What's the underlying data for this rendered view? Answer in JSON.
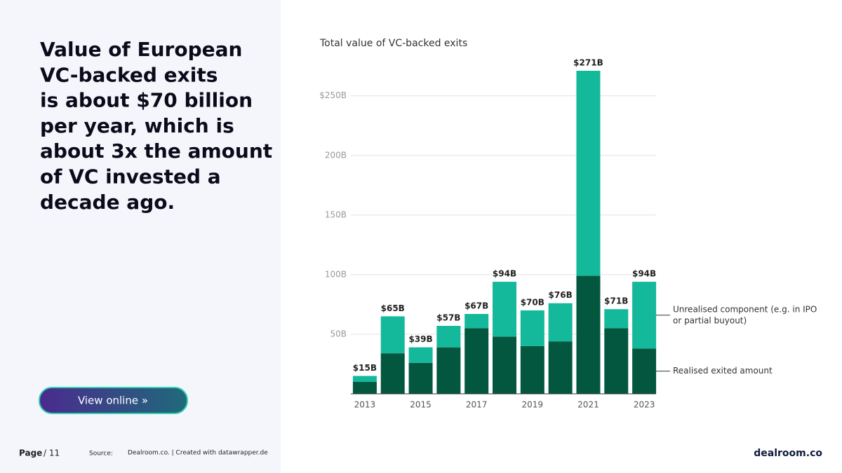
{
  "page": {
    "heading": [
      "Value of European",
      "VC-backed exits",
      "is about $70 billion",
      "per year, which is",
      "about 3x the amount",
      "of VC invested a",
      "decade ago."
    ],
    "button": "View online »",
    "page_label": "Page",
    "page_count": "/ 11",
    "source_label": "Source:",
    "source": "Dealroom.co. | Created with datawrapper.de",
    "logo": "dealroom.co"
  },
  "chart_data": {
    "type": "stacked_bar",
    "title": "Total value of VC-backed exits",
    "categories": [
      "2013",
      null,
      "2015",
      null,
      "2017",
      null,
      "2019",
      null,
      "2021",
      null,
      "2023"
    ],
    "series": [
      {
        "name": "Realised exited amount",
        "color": "#04573f",
        "values": [
          10,
          34,
          26,
          39,
          55,
          48,
          40,
          44,
          99,
          55,
          38
        ]
      },
      {
        "name": "Unrealised component (e.g. in IPO or partial buyout)",
        "color": "#14b89b",
        "values": [
          5,
          31,
          13,
          18,
          12,
          46,
          30,
          32,
          172,
          16,
          56
        ]
      }
    ],
    "totals": {
      "values": [
        15,
        65,
        39,
        57,
        67,
        94,
        70,
        76,
        271,
        71,
        94
      ],
      "value_labels": [
        "$15B",
        "$65B",
        "$39B",
        "$57B",
        "$67B",
        "$94B",
        "$70B",
        "$76B",
        "$271B",
        "$71B",
        "$94B"
      ]
    },
    "ylim": [
      0,
      271
    ],
    "yticks": [
      {
        "value": 50,
        "label": "50B"
      },
      {
        "value": 100,
        "label": "100B"
      },
      {
        "value": 150,
        "label": "150B"
      },
      {
        "value": 200,
        "label": "200B"
      },
      {
        "value": 250,
        "label": "$250B"
      }
    ],
    "grid": true,
    "legend": "right"
  }
}
